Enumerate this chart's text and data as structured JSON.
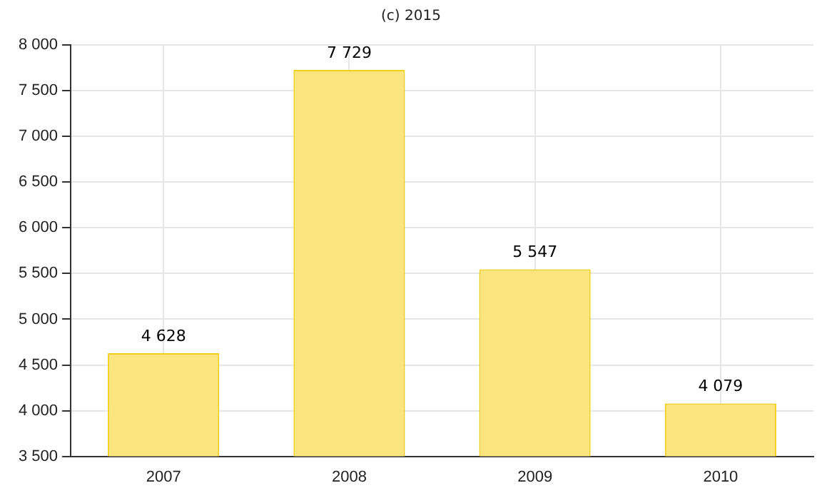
{
  "chart_data": {
    "type": "bar",
    "annotations": [
      "(c) 2015"
    ],
    "categories": [
      "2007",
      "2008",
      "2009",
      "2010"
    ],
    "values": [
      4628,
      7729,
      5547,
      4079
    ],
    "value_labels": [
      "4 628",
      "7 729",
      "5 547",
      "4 079"
    ],
    "color": "#fce57e",
    "ylim": [
      3500,
      8000
    ],
    "yticks": [
      {
        "value": 3500,
        "label": "3 500"
      },
      {
        "value": 4000,
        "label": "4 000"
      },
      {
        "value": 4500,
        "label": "4 500"
      },
      {
        "value": 5000,
        "label": "5 000"
      },
      {
        "value": 5500,
        "label": "5 500"
      },
      {
        "value": 6000,
        "label": "6 000"
      },
      {
        "value": 6500,
        "label": "6 500"
      },
      {
        "value": 7000,
        "label": "7 000"
      },
      {
        "value": 7500,
        "label": "7 500"
      },
      {
        "value": 8000,
        "label": "8 000"
      }
    ],
    "grid": true
  }
}
